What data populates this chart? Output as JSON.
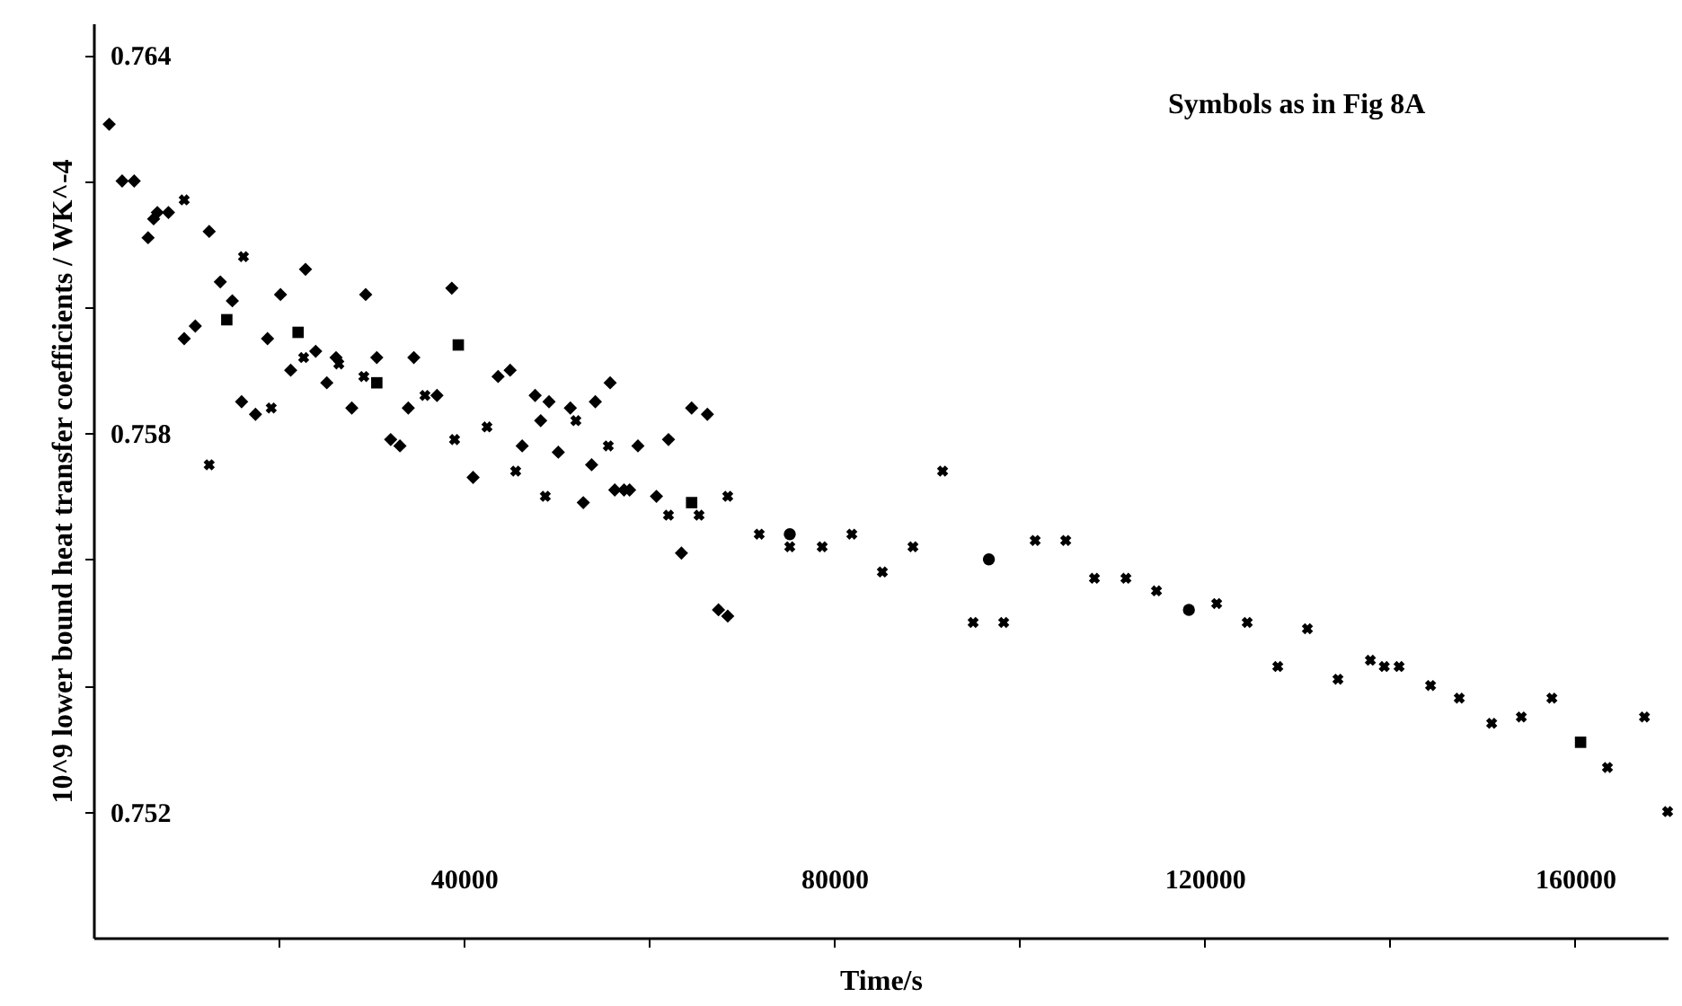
{
  "chart_data": {
    "type": "scatter",
    "xlabel": "Time/s",
    "ylabel": "10^9 lower bound heat transfer coefficients / WK^-4",
    "annotations": [
      "Symbols as in Fig 8A"
    ],
    "xlim": [
      0,
      170000
    ],
    "ylim": [
      0.75,
      0.7645
    ],
    "xticks": [
      {
        "value": 20000,
        "label": null
      },
      40000,
      {
        "value": 60000,
        "label": null
      },
      80000,
      {
        "value": 100000,
        "label": null
      },
      120000,
      {
        "value": 140000,
        "label": null
      },
      160000
    ],
    "yticks": [
      0.752,
      {
        "value": 0.754,
        "label": null
      },
      {
        "value": 0.756,
        "label": null
      },
      0.758,
      {
        "value": 0.76,
        "label": null
      },
      {
        "value": 0.762,
        "label": null
      },
      0.764
    ],
    "series": [
      {
        "color": "#000000",
        "marker": "diamond",
        "x": [
          1700,
          3100,
          4400,
          5900,
          6500,
          6900,
          8100,
          12500,
          13700,
          15000,
          20200,
          22900,
          9800,
          11000,
          18800,
          21300,
          24000,
          26200,
          25200,
          27900,
          29400,
          30600,
          34600,
          34000,
          37100,
          16000,
          17500,
          38700,
          32100,
          33100,
          43700,
          45000,
          47700,
          48300,
          49200,
          46300,
          50200,
          41000,
          51500,
          54200,
          55800,
          64600,
          66300,
          62100,
          53800,
          57300,
          60800,
          52900,
          56300,
          57900,
          63500,
          67500,
          68500,
          58800
        ],
        "values": [
          0.7629,
          0.762,
          0.762,
          0.7611,
          0.7614,
          0.7615,
          0.7615,
          0.7612,
          0.7604,
          0.7601,
          0.7602,
          0.7606,
          0.7595,
          0.7597,
          0.7595,
          0.759,
          0.7593,
          0.7592,
          0.7588,
          0.7584,
          0.7602,
          0.7592,
          0.7592,
          0.7584,
          0.7586,
          0.7585,
          0.7583,
          0.7603,
          0.7579,
          0.7578,
          0.7589,
          0.759,
          0.7586,
          0.7582,
          0.7585,
          0.7578,
          0.7577,
          0.7573,
          0.7584,
          0.7585,
          0.7588,
          0.7584,
          0.7583,
          0.7579,
          0.7575,
          0.7571,
          0.757,
          0.7569,
          0.7571,
          0.7571,
          0.7561,
          0.7552,
          0.7551,
          0.7578
        ]
      },
      {
        "color": "#000000",
        "marker": "square",
        "x": [
          14400,
          22100,
          30600,
          39400,
          64600,
          160600
        ],
        "values": [
          0.7598,
          0.7596,
          0.7588,
          0.7594,
          0.7569,
          0.7531
        ]
      },
      {
        "color": "#000000",
        "marker": "circle",
        "x": [
          75200,
          96700,
          118300
        ],
        "values": [
          0.7564,
          0.756,
          0.7552
        ]
      },
      {
        "color": "#000000",
        "marker": "cross",
        "x": [
          9800,
          16200,
          22700,
          26500,
          29200,
          35800,
          19200,
          39000,
          42500,
          12500,
          45600,
          48800,
          52100,
          55600,
          68500,
          62100,
          65400,
          71900,
          75200,
          78700,
          81900,
          85200,
          88500,
          91700,
          95000,
          98300,
          101700,
          105000,
          108100,
          111500,
          114800,
          121300,
          124600,
          127900,
          131100,
          134400,
          137900,
          139400,
          141000,
          144400,
          147500,
          151000,
          154200,
          157500,
          163500,
          167500,
          170000
        ],
        "values": [
          0.7617,
          0.7608,
          0.7592,
          0.7591,
          0.7589,
          0.7586,
          0.7584,
          0.7579,
          0.7581,
          0.7575,
          0.7574,
          0.757,
          0.7582,
          0.7578,
          0.757,
          0.7567,
          0.7567,
          0.7564,
          0.7562,
          0.7562,
          0.7564,
          0.7558,
          0.7562,
          0.7574,
          0.755,
          0.755,
          0.7563,
          0.7563,
          0.7557,
          0.7557,
          0.7555,
          0.7553,
          0.755,
          0.7543,
          0.7549,
          0.7541,
          0.7544,
          0.7543,
          0.7543,
          0.754,
          0.7538,
          0.7534,
          0.7535,
          0.7538,
          0.7527,
          0.7535,
          0.752
        ]
      }
    ]
  }
}
